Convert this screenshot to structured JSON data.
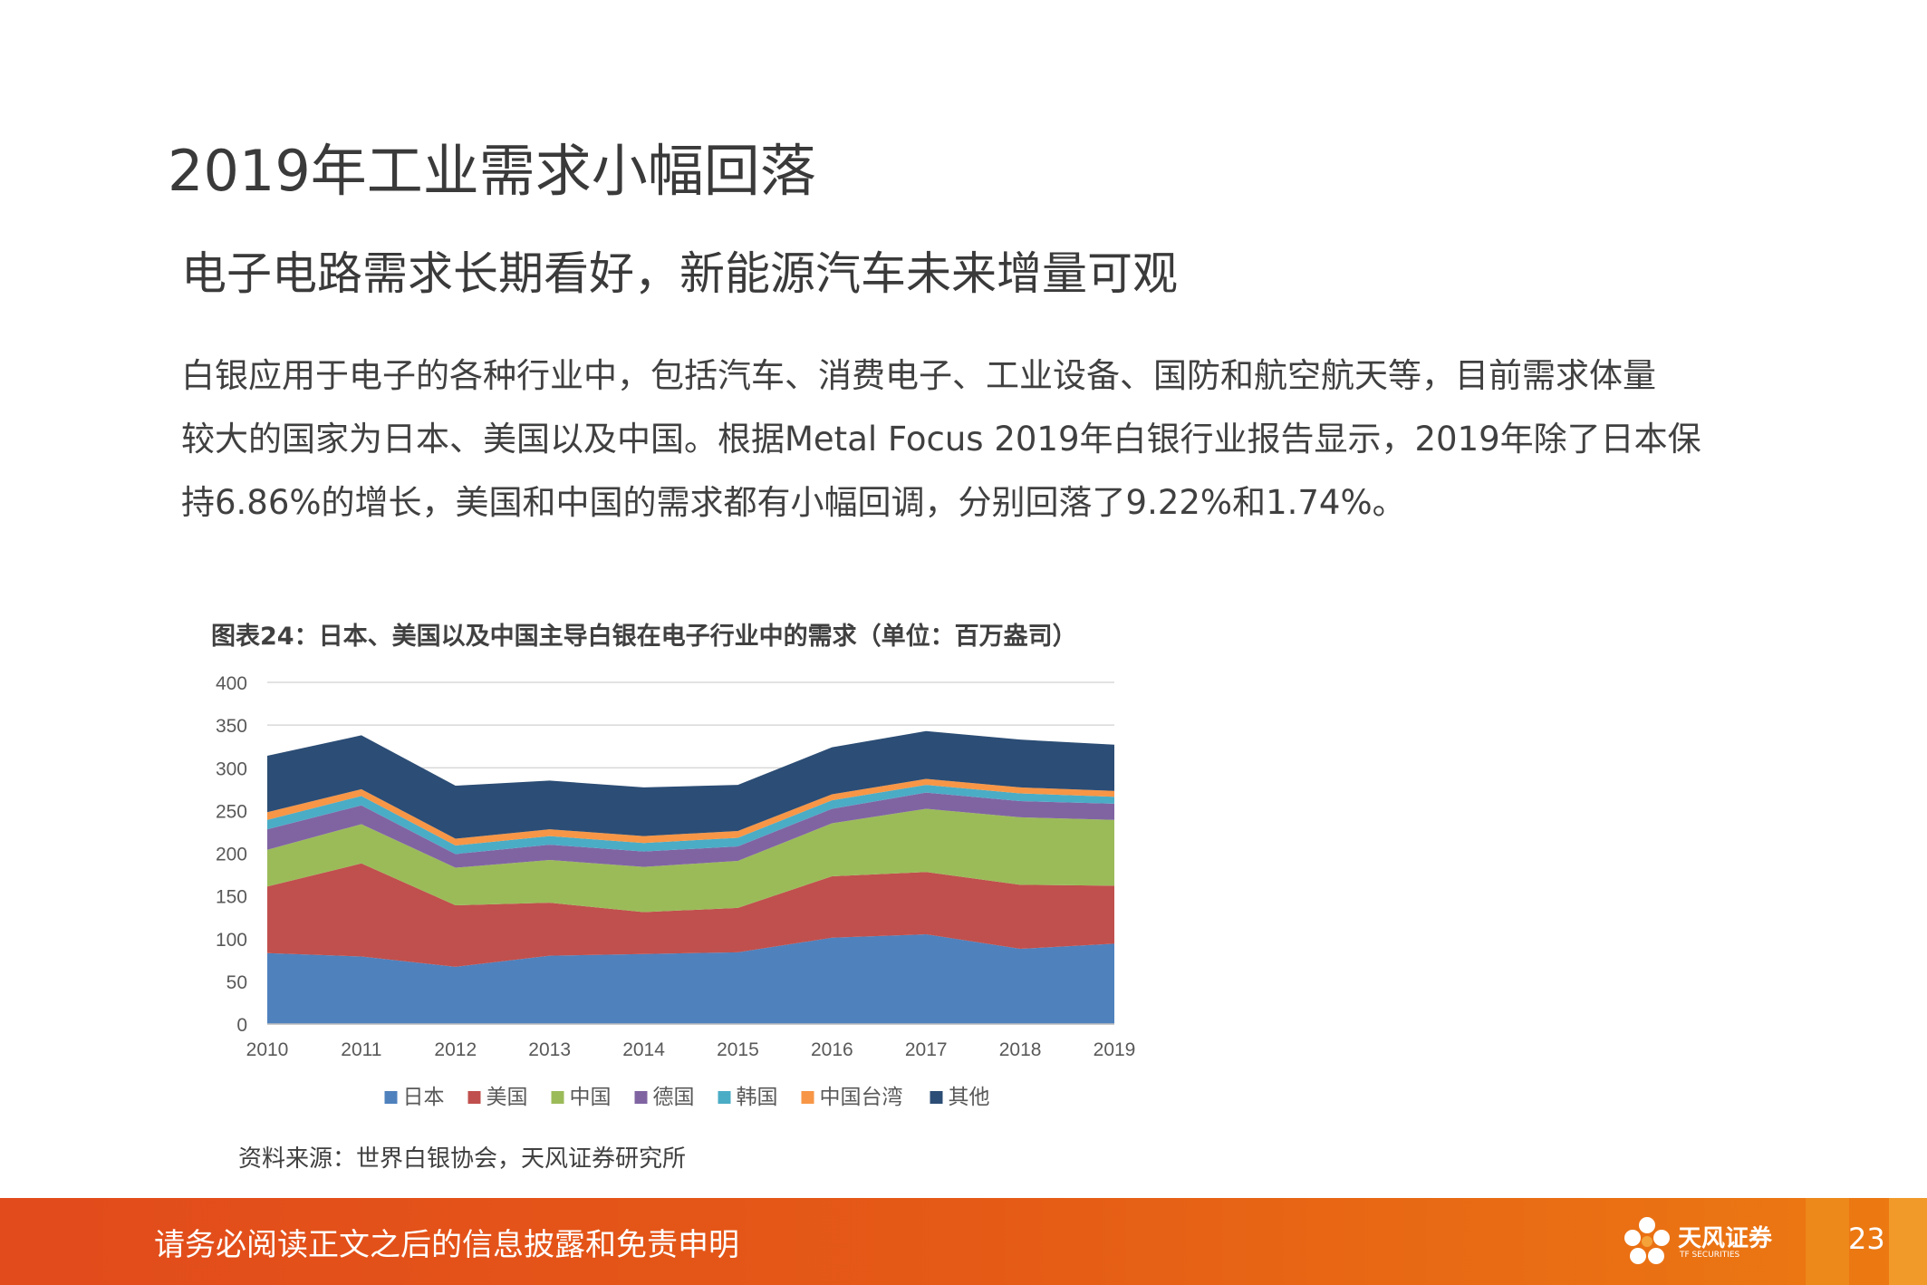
{
  "header": {
    "title": "2019年工业需求小幅回落",
    "subtitle": "电子电路需求长期看好，新能源汽车未来增量可观"
  },
  "body": {
    "lines": [
      "白银应用于电子的各种行业中，包括汽车、消费电子、工业设备、国防和航空航天等，目前需求体量",
      "较大的国家为日本、美国以及中国。根据Metal Focus 2019年白银行业报告显示，2019年除了日本保",
      "持6.86%的增长，美国和中国的需求都有小幅回调，分别回落了9.22%和1.74%。"
    ]
  },
  "figure": {
    "caption": "图表24：日本、美国以及中国主导白银在电子行业中的需求（单位：百万盎司）",
    "source": "资料来源：世界白银协会，天风证券研究所"
  },
  "chart_data": {
    "type": "area",
    "stacked": true,
    "x": [
      "2010",
      "2011",
      "2012",
      "2013",
      "2014",
      "2015",
      "2016",
      "2017",
      "2018",
      "2019"
    ],
    "ylim": [
      0,
      400
    ],
    "yticks": [
      "0",
      "50",
      "100",
      "150",
      "200",
      "250",
      "300",
      "350",
      "400"
    ],
    "grid": true,
    "legend_position": "bottom",
    "series": [
      {
        "name": "日本",
        "color": "#4f81bd",
        "values": [
          83,
          79,
          67,
          80,
          82,
          84,
          101,
          105,
          88,
          94
        ]
      },
      {
        "name": "美国",
        "color": "#c0504d",
        "values": [
          78,
          109,
          72,
          62,
          49,
          52,
          72,
          73,
          75,
          68
        ]
      },
      {
        "name": "中国",
        "color": "#9bbb59",
        "values": [
          43,
          46,
          44,
          50,
          53,
          55,
          62,
          74,
          79,
          77
        ]
      },
      {
        "name": "德国",
        "color": "#8064a2",
        "values": [
          24,
          22,
          16,
          18,
          18,
          17,
          17,
          19,
          19,
          19
        ]
      },
      {
        "name": "韩国",
        "color": "#4bacc6",
        "values": [
          11,
          11,
          10,
          10,
          10,
          10,
          10,
          9,
          9,
          8
        ]
      },
      {
        "name": "中国台湾",
        "color": "#f79646",
        "values": [
          9,
          8,
          8,
          8,
          8,
          8,
          7,
          7,
          7,
          7
        ]
      },
      {
        "name": "其他",
        "color": "#2c4d75",
        "values": [
          66,
          63,
          62,
          57,
          57,
          54,
          55,
          56,
          56,
          54
        ]
      }
    ]
  },
  "footer": {
    "disclaimer": "请务必阅读正文之后的信息披露和免责申明",
    "brand": "天风证券",
    "brand_en": "TF SECURITIES",
    "page": "23"
  },
  "theme": {
    "footer_color": "#e55a16",
    "accent": "#ec7a12"
  }
}
